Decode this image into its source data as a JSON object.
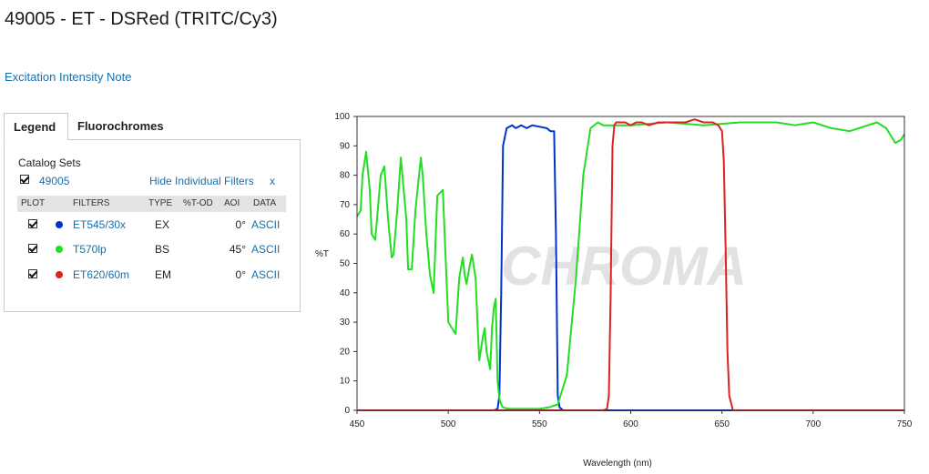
{
  "page": {
    "title": "49005 - ET - DSRed (TRITC/Cy3)",
    "note_link": "Excitation Intensity Note"
  },
  "tabs": [
    {
      "label": "Legend",
      "active": true
    },
    {
      "label": "Fluorochromes",
      "active": false
    }
  ],
  "legend": {
    "catalog_sets_label": "Catalog Sets",
    "set_id": "49005",
    "hide_label": "Hide Individual Filters",
    "hide_x": "x",
    "columns": [
      "PLOT",
      "FILTERS",
      "TYPE",
      "%T-OD",
      "AOI",
      "DATA"
    ],
    "rows": [
      {
        "filter": "ET545/30x",
        "color": "#0033cc",
        "type": "EX",
        "aoi": "0°",
        "data": "ASCII"
      },
      {
        "filter": "T570lp",
        "color": "#22dd22",
        "type": "BS",
        "aoi": "45°",
        "data": "ASCII"
      },
      {
        "filter": "ET620/60m",
        "color": "#dd2222",
        "type": "EM",
        "aoi": "0°",
        "data": "ASCII"
      }
    ]
  },
  "chart_data": {
    "type": "line",
    "xlabel": "Wavelength (nm)",
    "ylabel": "%T",
    "xlim": [
      450,
      750
    ],
    "ylim": [
      0,
      100
    ],
    "xticks": [
      450,
      500,
      550,
      600,
      650,
      700,
      750
    ],
    "yticks": [
      0,
      10,
      20,
      30,
      40,
      50,
      60,
      70,
      80,
      90,
      100
    ],
    "watermark": "CHROMA",
    "series": [
      {
        "name": "ET545/30x",
        "color": "#0033cc",
        "x": [
          450,
          525,
          527,
          528,
          529,
          530,
          532,
          535,
          537,
          540,
          543,
          546,
          550,
          554,
          556,
          558,
          559,
          560,
          561,
          563,
          600,
          700,
          750
        ],
        "y": [
          0,
          0,
          0.5,
          5,
          40,
          90,
          96,
          97,
          96,
          97,
          96,
          97,
          96.5,
          96,
          95,
          95,
          60,
          5,
          1,
          0,
          0,
          0,
          0
        ]
      },
      {
        "name": "T570lp",
        "color": "#22dd22",
        "x": [
          450,
          452,
          453,
          455,
          457,
          458,
          460,
          463,
          465,
          467,
          469,
          470,
          472,
          474,
          477,
          478,
          480,
          482,
          485,
          486,
          488,
          490,
          492,
          494,
          497,
          499,
          500,
          502,
          504,
          506,
          508,
          509,
          510,
          512,
          513,
          515,
          516,
          517,
          519,
          520,
          521,
          523,
          524,
          525,
          526,
          527,
          528,
          529,
          530,
          533,
          540,
          550,
          555,
          560,
          565,
          570,
          574,
          578,
          582,
          585,
          600,
          620,
          640,
          660,
          680,
          690,
          700,
          710,
          720,
          730,
          735,
          740,
          745,
          748,
          750
        ],
        "y": [
          66,
          68,
          80,
          88,
          75,
          60,
          58,
          80,
          83,
          65,
          52,
          53,
          68,
          86,
          65,
          48,
          48,
          68,
          86,
          80,
          60,
          46,
          40,
          73,
          75,
          45,
          30,
          28,
          26,
          45,
          52,
          46,
          43,
          50,
          53,
          45,
          30,
          17,
          25,
          28,
          20,
          14,
          28,
          35,
          38,
          10,
          4,
          2,
          1,
          0.5,
          0.5,
          0.5,
          1,
          2,
          12,
          45,
          80,
          96,
          98,
          97,
          97,
          98,
          97,
          98,
          98,
          97,
          98,
          96,
          95,
          97,
          98,
          96,
          91,
          92,
          94
        ]
      },
      {
        "name": "ET620/60m",
        "color": "#dd2222",
        "x": [
          450,
          585,
          587,
          588,
          589,
          590,
          591,
          592,
          594,
          597,
          600,
          603,
          606,
          610,
          615,
          620,
          625,
          630,
          635,
          640,
          645,
          648,
          650,
          651,
          652,
          653,
          654,
          656,
          700,
          750
        ],
        "y": [
          0,
          0,
          0.5,
          5,
          40,
          90,
          97,
          98,
          98,
          98,
          97,
          98,
          98,
          97,
          98,
          98,
          98,
          98,
          99,
          98,
          98,
          97,
          95,
          85,
          55,
          20,
          5,
          0,
          0,
          0
        ]
      }
    ]
  }
}
